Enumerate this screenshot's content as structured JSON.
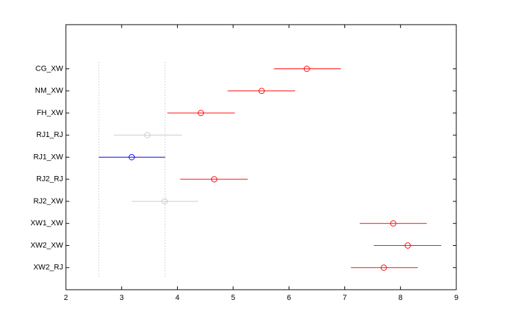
{
  "chart_data": {
    "type": "interval",
    "categories": [
      "CG_XW",
      "NM_XW",
      "FH_XW",
      "RJ1_RJ",
      "RJ1_XW",
      "RJ2_RJ",
      "RJ2_XW",
      "XW1_XW",
      "XW2_XW",
      "XW2_RJ"
    ],
    "values": [
      6.32,
      5.51,
      4.42,
      3.46,
      3.18,
      4.66,
      3.77,
      7.87,
      8.13,
      7.7
    ],
    "lower": [
      5.73,
      4.9,
      3.82,
      2.86,
      2.59,
      4.05,
      3.18,
      7.27,
      7.52,
      7.11
    ],
    "upper": [
      6.93,
      6.11,
      5.03,
      4.08,
      3.78,
      5.26,
      4.37,
      8.47,
      8.73,
      8.31
    ],
    "colors": [
      "#ff0000",
      "#ff0000",
      "#ff0000",
      "#c8c8c8",
      "#0000ff",
      "#ff0000",
      "#c8c8c8",
      "#ff0000",
      "#ff0000",
      "#ff0000"
    ],
    "selected": 4,
    "xlim": [
      2,
      9
    ],
    "xticks": [
      2,
      3,
      4,
      5,
      6,
      7,
      8,
      9
    ]
  }
}
